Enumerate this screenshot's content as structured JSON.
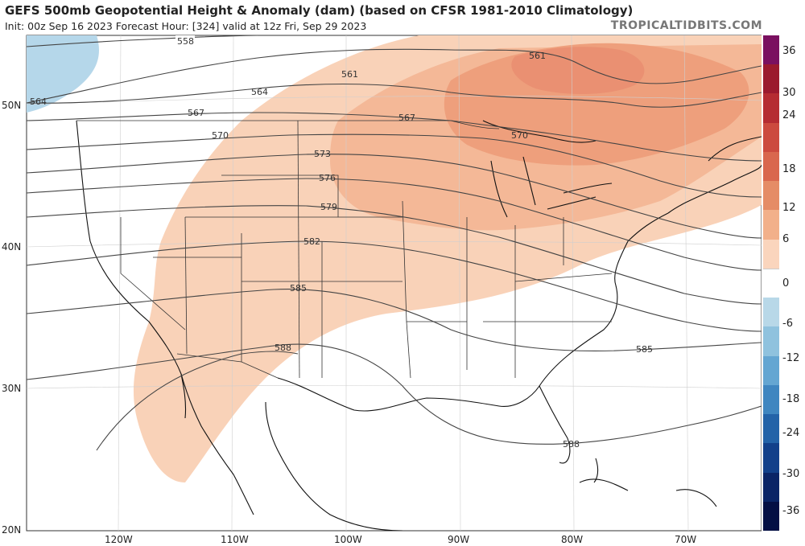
{
  "header": {
    "title": "GEFS 500mb Geopotential Height & Anomaly (dam) (based on CFSR 1981-2010 Climatology)",
    "subtitle": "Init: 00z Sep 16 2023   Forecast Hour: [324]   valid at 12z Fri, Sep 29 2023",
    "credit": "TROPICALTIDBITS.COM"
  },
  "colorbar": {
    "labels": [
      "36",
      "30",
      "24",
      "18",
      "12",
      "6",
      "0",
      "-6",
      "-12",
      "-18",
      "-24",
      "-30",
      "-36"
    ],
    "colors": [
      "#7a1060",
      "#9b1a2e",
      "#b52c32",
      "#cc4a3e",
      "#d9674e",
      "#e58c66",
      "#f2b08a",
      "#fad5bd",
      "#ffffff",
      "#b8d8e8",
      "#8fc2de",
      "#64a6d2",
      "#3f86c0",
      "#2363a8",
      "#12408a",
      "#0a2466",
      "#040f44"
    ]
  },
  "map": {
    "lat_labels": [
      "50N",
      "40N",
      "30N",
      "20N"
    ],
    "lon_labels": [
      "120W",
      "110W",
      "100W",
      "90W",
      "80W",
      "70W"
    ],
    "contour_labels": [
      "558",
      "561",
      "561",
      "564",
      "564",
      "567",
      "567",
      "570",
      "570",
      "573",
      "576",
      "579",
      "582",
      "585",
      "585",
      "588",
      "588"
    ],
    "anomaly_colors": {
      "positive_light": "#f9d2b8",
      "positive_mid": "#f4b897",
      "positive_strong": "#ee9f7c",
      "negative_light": "#b5d7ea"
    }
  }
}
